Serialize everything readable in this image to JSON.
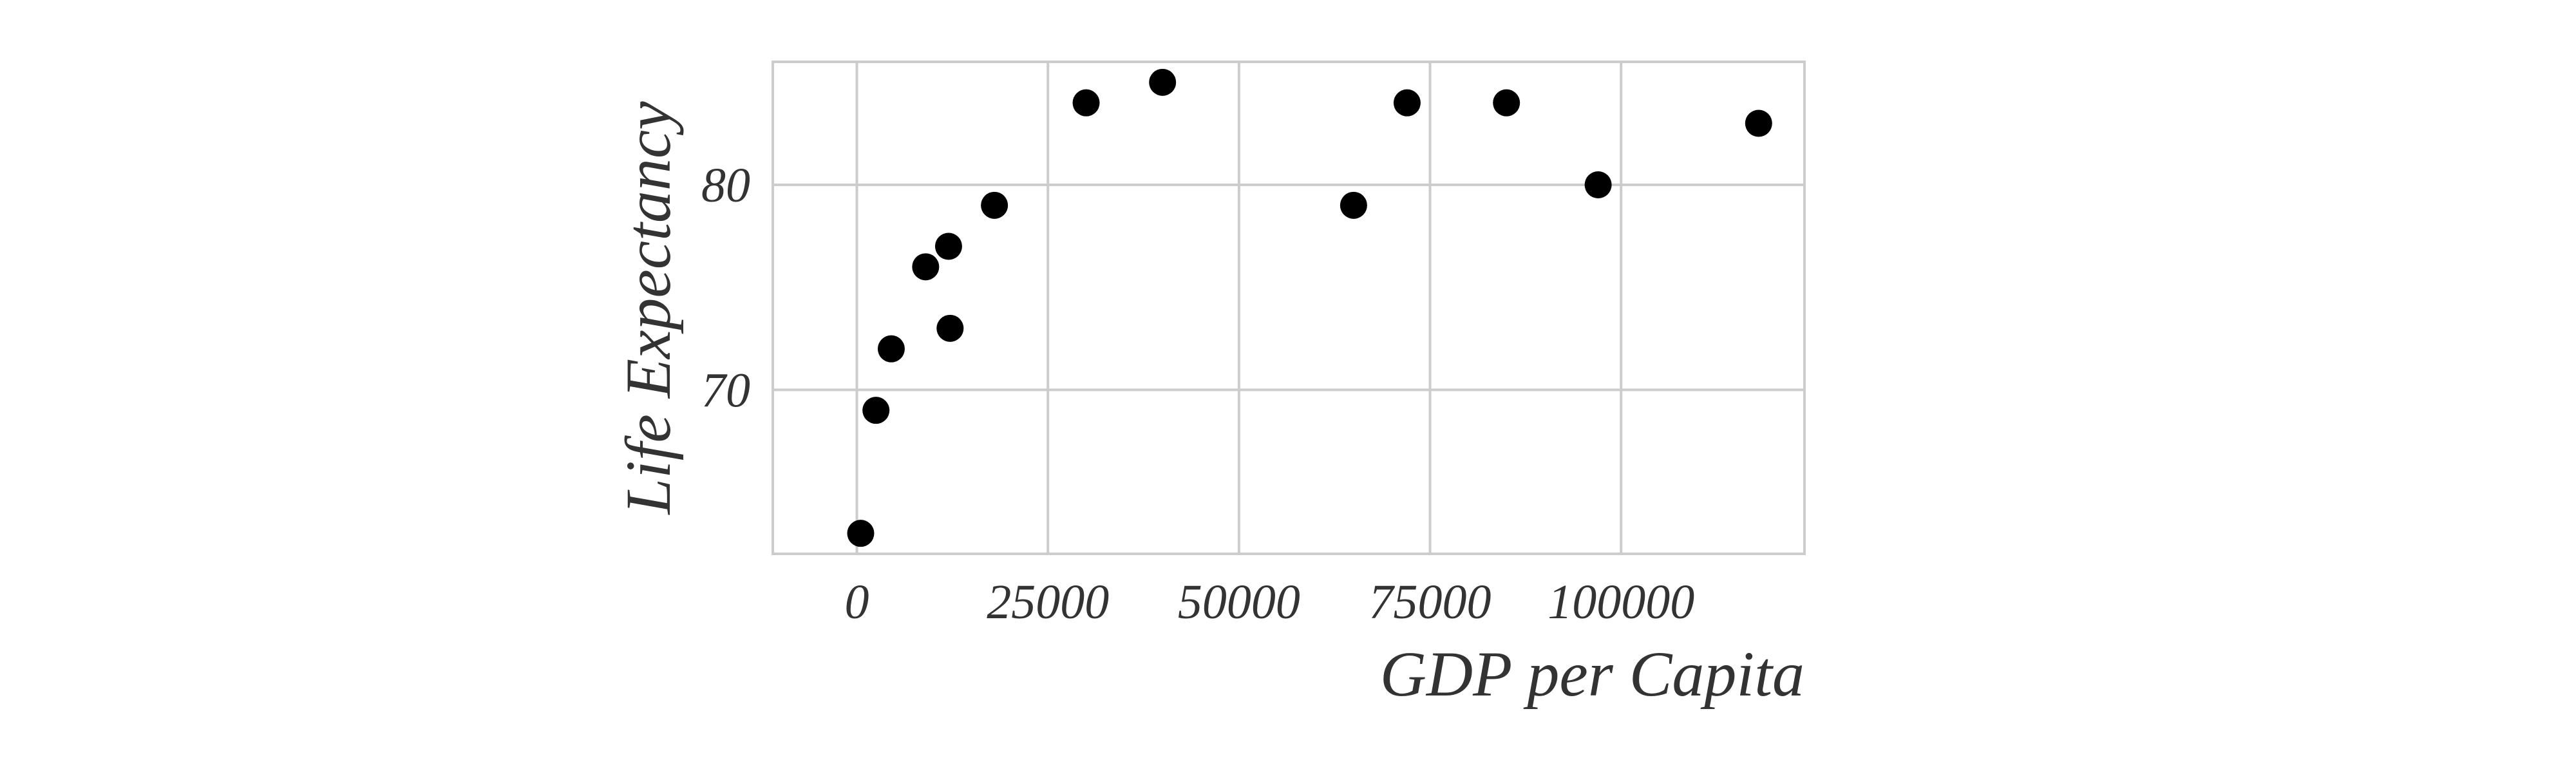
{
  "chart_data": {
    "type": "scatter",
    "title": "",
    "xlabel": "GDP per Capita",
    "ylabel": "Life Expectancy",
    "xlim": [
      -11000,
      124000
    ],
    "ylim": [
      62,
      86
    ],
    "xticks": [
      0,
      25000,
      50000,
      75000,
      100000
    ],
    "yticks": [
      70,
      80
    ],
    "grid": true,
    "points": [
      {
        "x": 500,
        "y": 63
      },
      {
        "x": 2500,
        "y": 69
      },
      {
        "x": 4500,
        "y": 72
      },
      {
        "x": 9000,
        "y": 76
      },
      {
        "x": 12000,
        "y": 77
      },
      {
        "x": 12200,
        "y": 73
      },
      {
        "x": 18000,
        "y": 79
      },
      {
        "x": 30000,
        "y": 84
      },
      {
        "x": 40000,
        "y": 85
      },
      {
        "x": 65000,
        "y": 79
      },
      {
        "x": 72000,
        "y": 84
      },
      {
        "x": 85000,
        "y": 84
      },
      {
        "x": 97000,
        "y": 80
      },
      {
        "x": 118000,
        "y": 83
      }
    ],
    "colors": {
      "point": "#000000",
      "grid": "#cccccc",
      "frame": "#cccccc",
      "text": "#333333"
    }
  }
}
